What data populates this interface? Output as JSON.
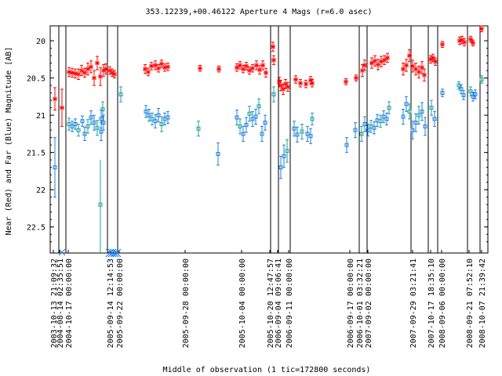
{
  "chart_data": {
    "type": "scatter",
    "title": "353.12239,+00.46122   Aperture 4 Mags (r=6.0 asec)",
    "xlabel": "Middle of observation (1 tic=172800 seconds)",
    "ylabel": "Near (Red) and Far (Blue) Magnitude [AB]",
    "ylim": [
      22.85,
      19.8
    ],
    "y_inverted": true,
    "y_ticks": [
      "20",
      "20.5",
      "21",
      "21.5",
      "22",
      "22.5"
    ],
    "x_tick_labels": [
      "2003-10-13  21:09:32",
      "2004-08-14  02:35:51",
      "2004-10-17  00:00:00",
      "2005-09-14  12:14:53",
      "2005-09-22  00:00:00",
      "2005-09-28  00:00:00",
      "2005-10-04  00:00:00",
      "2005-10-20  12:47:57",
      "2006-09-04  09:06:41",
      "2006-09-11  00:00:00",
      "2006-09-17  00:00:00",
      "2006-10-01  03:32:21",
      "2007-09-02  00:00:00",
      "2007-09-29  03:21:41",
      "2007-10-17  18:35:10",
      "2008-09-06  00:00:00",
      "2008-09-21  07:52:10",
      "2008-10-07  21:39:42"
    ],
    "colors": {
      "near": "#ff0000",
      "far": "#2080e0",
      "far_alt": "#20a0a0",
      "axis": "#000000"
    },
    "series": [
      {
        "name": "Near (Red)",
        "points": [
          [
            70,
            20.78,
            0.15
          ],
          [
            79,
            20.9,
            0.25
          ],
          [
            88,
            20.42,
            0.06
          ],
          [
            92,
            20.43,
            0.06
          ],
          [
            96,
            20.44,
            0.06
          ],
          [
            100,
            20.45,
            0.07
          ],
          [
            104,
            20.4,
            0.07
          ],
          [
            108,
            20.43,
            0.06
          ],
          [
            112,
            20.38,
            0.08
          ],
          [
            116,
            20.35,
            0.08
          ],
          [
            120,
            20.5,
            0.1
          ],
          [
            124,
            20.3,
            0.09
          ],
          [
            128,
            20.48,
            0.12
          ],
          [
            132,
            20.4,
            0.08
          ],
          [
            135,
            20.38,
            0.07
          ],
          [
            140,
            20.4,
            0.05
          ],
          [
            143,
            20.43,
            0.05
          ],
          [
            146,
            20.45,
            0.05
          ],
          [
            185,
            20.38,
            0.06
          ],
          [
            189,
            20.42,
            0.05
          ],
          [
            193,
            20.34,
            0.05
          ],
          [
            198,
            20.33,
            0.06
          ],
          [
            202,
            20.37,
            0.05
          ],
          [
            206,
            20.31,
            0.05
          ],
          [
            210,
            20.36,
            0.05
          ],
          [
            214,
            20.35,
            0.05
          ],
          [
            255,
            20.37,
            0.04
          ],
          [
            279,
            20.38,
            0.04
          ],
          [
            302,
            20.36,
            0.05
          ],
          [
            306,
            20.33,
            0.05
          ],
          [
            310,
            20.38,
            0.05
          ],
          [
            314,
            20.34,
            0.05
          ],
          [
            318,
            20.4,
            0.05
          ],
          [
            322,
            20.37,
            0.05
          ],
          [
            327,
            20.33,
            0.06
          ],
          [
            331,
            20.39,
            0.06
          ],
          [
            335,
            20.33,
            0.06
          ],
          [
            339,
            20.43,
            0.06
          ],
          [
            348,
            20.08,
            0.06
          ],
          [
            349,
            20.26,
            0.06
          ],
          [
            356,
            20.55,
            0.06
          ],
          [
            358,
            20.6,
            0.07
          ],
          [
            361,
            20.65,
            0.07
          ],
          [
            364,
            20.58,
            0.06
          ],
          [
            367,
            20.62,
            0.06
          ],
          [
            377,
            20.52,
            0.05
          ],
          [
            383,
            20.57,
            0.05
          ],
          [
            390,
            20.58,
            0.05
          ],
          [
            396,
            20.53,
            0.05
          ],
          [
            398,
            20.57,
            0.05
          ],
          [
            441,
            20.55,
            0.04
          ],
          [
            454,
            20.5,
            0.04
          ],
          [
            462,
            20.4,
            0.08
          ],
          [
            465,
            20.33,
            0.07
          ],
          [
            474,
            20.3,
            0.07
          ],
          [
            478,
            20.27,
            0.07
          ],
          [
            482,
            20.32,
            0.07
          ],
          [
            486,
            20.28,
            0.07
          ],
          [
            490,
            20.26,
            0.06
          ],
          [
            494,
            20.23,
            0.06
          ],
          [
            514,
            20.38,
            0.08
          ],
          [
            518,
            20.33,
            0.08
          ],
          [
            522,
            20.2,
            0.08
          ],
          [
            526,
            20.34,
            0.08
          ],
          [
            530,
            20.38,
            0.08
          ],
          [
            534,
            20.42,
            0.08
          ],
          [
            538,
            20.36,
            0.08
          ],
          [
            541,
            20.46,
            0.08
          ],
          [
            549,
            20.25,
            0.05
          ],
          [
            552,
            20.23,
            0.05
          ],
          [
            555,
            20.28,
            0.05
          ],
          [
            564,
            20.05,
            0.04
          ],
          [
            586,
            20.0,
            0.05
          ],
          [
            589,
            19.99,
            0.05
          ],
          [
            592,
            20.02,
            0.05
          ],
          [
            600,
            19.98,
            0.04
          ],
          [
            603,
            20.03,
            0.04
          ],
          [
            614,
            19.84,
            0.04
          ]
        ]
      },
      {
        "name": "Far (Blue)",
        "points": [
          [
            70,
            21.7,
            0.4
          ],
          [
            88,
            21.12,
            0.08
          ],
          [
            92,
            21.15,
            0.07
          ],
          [
            96,
            21.12,
            0.07
          ],
          [
            100,
            21.2,
            0.08
          ],
          [
            105,
            21.08,
            0.07
          ],
          [
            108,
            21.25,
            0.09
          ],
          [
            112,
            21.15,
            0.09
          ],
          [
            116,
            21.03,
            0.09
          ],
          [
            120,
            21.1,
            0.1
          ],
          [
            124,
            21.17,
            0.1
          ],
          [
            129,
            21.22,
            0.12
          ],
          [
            129,
            21.05,
            0.12
          ],
          [
            131,
            20.92,
            0.1
          ],
          [
            132,
            21.1,
            0.1
          ],
          [
            140,
            22.85,
            0.15
          ],
          [
            143,
            22.85,
            0.15
          ],
          [
            146,
            22.85,
            0.15
          ],
          [
            149,
            22.85,
            0.15
          ],
          [
            154,
            20.72,
            0.1
          ],
          [
            186,
            20.95,
            0.08
          ],
          [
            190,
            21.0,
            0.08
          ],
          [
            194,
            21.05,
            0.08
          ],
          [
            198,
            21.08,
            0.09
          ],
          [
            202,
            21.0,
            0.09
          ],
          [
            206,
            21.12,
            0.1
          ],
          [
            210,
            21.05,
            0.08
          ],
          [
            214,
            21.03,
            0.08
          ],
          [
            253,
            21.18,
            0.1
          ],
          [
            278,
            21.52,
            0.15
          ],
          [
            302,
            21.03,
            0.1
          ],
          [
            306,
            21.15,
            0.1
          ],
          [
            310,
            21.25,
            0.1
          ],
          [
            314,
            21.13,
            0.1
          ],
          [
            318,
            20.98,
            0.1
          ],
          [
            322,
            21.05,
            0.1
          ],
          [
            326,
            21.02,
            0.1
          ],
          [
            330,
            20.88,
            0.1
          ],
          [
            334,
            21.25,
            0.1
          ],
          [
            338,
            21.1,
            0.1
          ],
          [
            349,
            20.72,
            0.1
          ],
          [
            358,
            21.7,
            0.15
          ],
          [
            362,
            21.55,
            0.15
          ],
          [
            366,
            21.48,
            0.15
          ],
          [
            375,
            21.18,
            0.1
          ],
          [
            379,
            21.26,
            0.1
          ],
          [
            385,
            21.22,
            0.1
          ],
          [
            392,
            21.25,
            0.1
          ],
          [
            396,
            21.28,
            0.1
          ],
          [
            398,
            21.05,
            0.08
          ],
          [
            442,
            21.4,
            0.1
          ],
          [
            453,
            21.2,
            0.1
          ],
          [
            461,
            21.25,
            0.1
          ],
          [
            465,
            21.12,
            0.1
          ],
          [
            469,
            21.2,
            0.08
          ],
          [
            473,
            21.15,
            0.08
          ],
          [
            477,
            21.17,
            0.08
          ],
          [
            481,
            21.07,
            0.08
          ],
          [
            485,
            21.08,
            0.08
          ],
          [
            489,
            21.02,
            0.08
          ],
          [
            493,
            21.05,
            0.08
          ],
          [
            496,
            20.9,
            0.08
          ],
          [
            514,
            21.02,
            0.1
          ],
          [
            518,
            20.85,
            0.1
          ],
          [
            522,
            20.95,
            0.1
          ],
          [
            526,
            21.2,
            0.12
          ],
          [
            530,
            21.1,
            0.12
          ],
          [
            534,
            21.0,
            0.12
          ],
          [
            538,
            20.95,
            0.12
          ],
          [
            542,
            21.15,
            0.12
          ],
          [
            550,
            20.9,
            0.1
          ],
          [
            554,
            21.05,
            0.1
          ],
          [
            564,
            20.7,
            0.05
          ],
          [
            585,
            20.6,
            0.05
          ],
          [
            588,
            20.65,
            0.06
          ],
          [
            591,
            20.73,
            0.06
          ],
          [
            600,
            20.68,
            0.06
          ],
          [
            603,
            20.75,
            0.06
          ],
          [
            606,
            20.72,
            0.06
          ],
          [
            614,
            20.52,
            0.05
          ]
        ]
      }
    ],
    "grid": false
  }
}
